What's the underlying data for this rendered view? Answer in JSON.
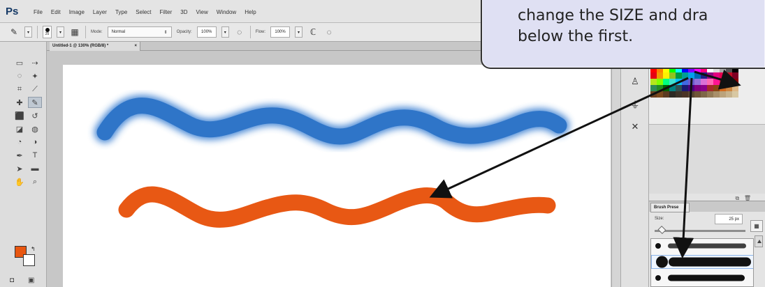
{
  "menubar": {
    "logo": "Ps",
    "items": [
      "File",
      "Edit",
      "Image",
      "Layer",
      "Type",
      "Select",
      "Filter",
      "3D",
      "View",
      "Window",
      "Help"
    ]
  },
  "options_bar": {
    "brush_size": "25",
    "mode_label": "Mode:",
    "mode_value": "Normal",
    "opacity_label": "Opacity:",
    "opacity_value": "100%",
    "flow_label": "Flow:",
    "flow_value": "100%"
  },
  "document_tab": {
    "title": "Untitled-1 @ 130% (RGB/8) *",
    "close": "×"
  },
  "tool_icons": [
    "rect-marquee",
    "move",
    "lasso",
    "quick-select",
    "crop",
    "eyedropper",
    "spot-heal",
    "brush",
    "clone-stamp",
    "history-brush",
    "eraser",
    "paint-bucket",
    "blur",
    "dodge",
    "pen",
    "text",
    "path-select",
    "shape",
    "hand",
    "zoom"
  ],
  "colors": {
    "foreground": "#e85610",
    "background": "#ffffff",
    "blue_stroke": "#347bd0",
    "orange_stroke": "#e85814"
  },
  "brush_presets": {
    "tab_label": "Brush Prese",
    "size_label": "Size:",
    "size_value": "25 px"
  },
  "callout": {
    "line1": "change the SIZE and dra",
    "line2": "below the first."
  }
}
